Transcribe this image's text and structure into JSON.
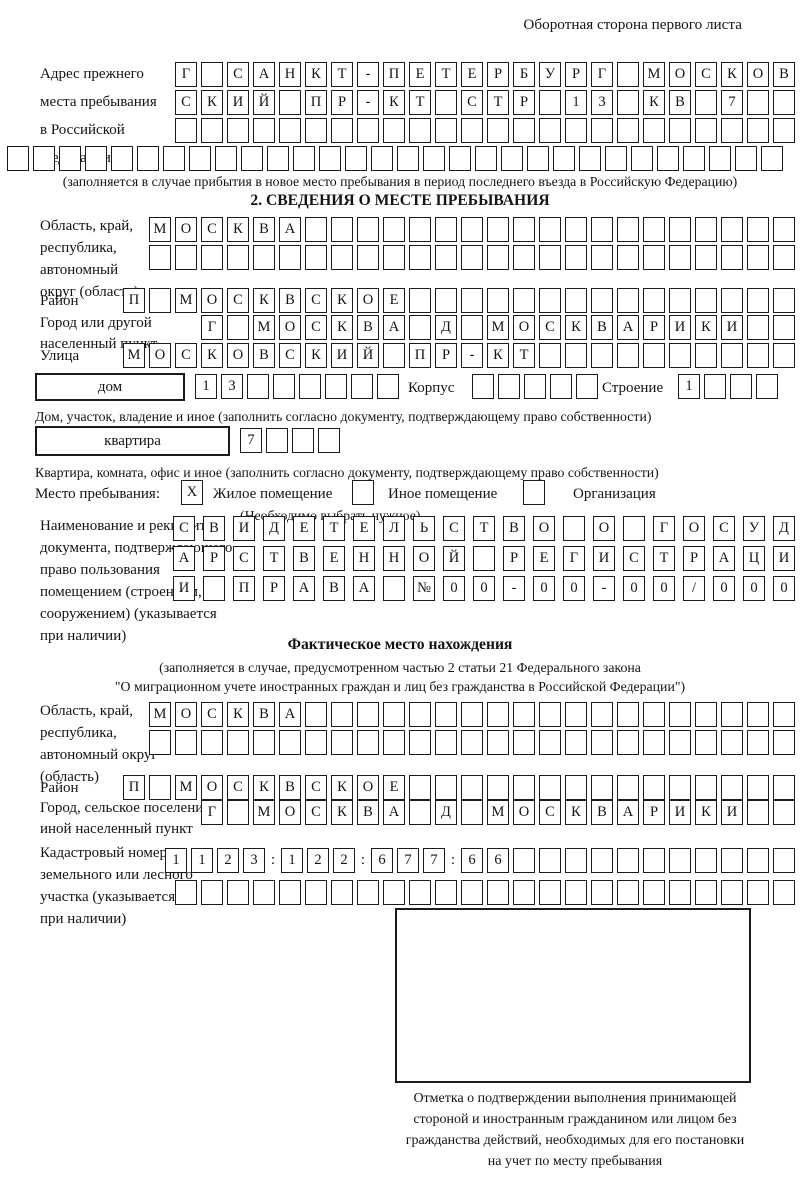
{
  "colors": {
    "ink": "#1b1b1b",
    "paper": "#ffffff"
  },
  "header": {
    "note": "Оборотная сторона первого листа"
  },
  "prev_address": {
    "label_lines": [
      "Адрес прежнего",
      "места пребывания",
      "в Российской",
      "Федерации"
    ],
    "row1": "Г САНКТ-ПЕТЕРБУРГ МОСКОВ",
    "row2": "СКИЙ ПР-КТ СТР 13 КВ 7  ",
    "row3": "                        ",
    "row4": "                              ",
    "note": "(заполняется в случае прибытия в новое место пребывания в период последнего въезда в Российскую Федерацию)"
  },
  "section2": {
    "title": "2. СВЕДЕНИЯ О МЕСТЕ ПРЕБЫВАНИЯ",
    "oblast": {
      "label_lines": [
        "Область, край,",
        "республика,",
        "автономный",
        "округ (область)"
      ],
      "row1": "МОСКВА                   ",
      "row2": "                         "
    },
    "raion": {
      "label": "Район",
      "row": "П МОСКВСКОЕ               "
    },
    "gorod": {
      "label_lines": [
        "Город или другой",
        "населенный пункт"
      ],
      "row": "Г МОСКВА Д МОСКВАРИКИ  "
    },
    "ulitsa": {
      "label": "Улица",
      "row": "МОСКОВСКИЙ ПР-КТ          "
    },
    "dom": {
      "box_label": "дом",
      "numbers": "13      ",
      "korpus_label": "Корпус",
      "korpus_numbers": "     ",
      "stroenie_label": "Строение",
      "stroenie_numbers": "1   ",
      "caption": "Дом, участок, владение и иное (заполнить согласно документу, подтверждающему право собственности)"
    },
    "kvartira": {
      "box_label": "квартира",
      "numbers": "7   ",
      "caption": "Квартира, комната, офис и иное (заполнить согласно документу, подтверждающему право собственности)"
    },
    "mesto": {
      "label": "Место пребывания:",
      "zhiloe_mark": "X",
      "zhiloe_label": "Жилое помещение",
      "inoe_mark": " ",
      "inoe_label": "Иное помещение",
      "org_mark": " ",
      "org_label": "Организация",
      "note": "(Необходимо выбрать нужное)"
    },
    "document": {
      "label_lines": [
        "Наименование и реквизиты",
        "документа, подтверждающего",
        "право пользования",
        "помещением (строением,",
        "сооружением) (указывается",
        "при наличии)"
      ],
      "row1": "СВИДЕТЕЛЬСТВО О ГОСУД",
      "row2": "АРСТВЕННОЙ РЕГИСТРАЦИ",
      "row3": "И ПРАВА №00-00-00/000"
    }
  },
  "fact": {
    "title": "Фактическое место нахождения",
    "note_lines": [
      "(заполняется в случае, предусмотренном частью 2 статьи 21 Федерального закона",
      "\"О миграционном учете иностранных граждан и лиц без гражданства в Российской Федерации\")"
    ],
    "oblast": {
      "label_lines": [
        "Область, край,",
        "республика,",
        "автономный округ",
        "(область)"
      ],
      "row1": "МОСКВА                   ",
      "row2": "                         "
    },
    "raion": {
      "label": "Район",
      "row": "П МОСКВСКОЕ               "
    },
    "gorod": {
      "label_lines": [
        "Город, сельское поселение,",
        "иной населенный пункт"
      ],
      "row": "Г МОСКВА Д МОСКВАРИКИ  "
    },
    "kadastr": {
      "label_lines": [
        "Кадастровый номер",
        "земельного или лесного",
        "участка (указывается",
        "при наличии)"
      ],
      "row1": [
        {
          "boxes": "1123"
        },
        {
          "sep": ":"
        },
        {
          "boxes": "122"
        },
        {
          "sep": ":"
        },
        {
          "boxes": "677"
        },
        {
          "sep": ":"
        },
        {
          "boxes": "66"
        },
        {
          "boxes": "           "
        }
      ],
      "row2": "                        "
    }
  },
  "stamp": {
    "caption_lines": [
      "Отметка о подтверждении выполнения принимающей",
      "стороной и иностранным гражданином или лицом без",
      "гражданства действий, необходимых для его постановки",
      "на учет по месту пребывания"
    ]
  }
}
